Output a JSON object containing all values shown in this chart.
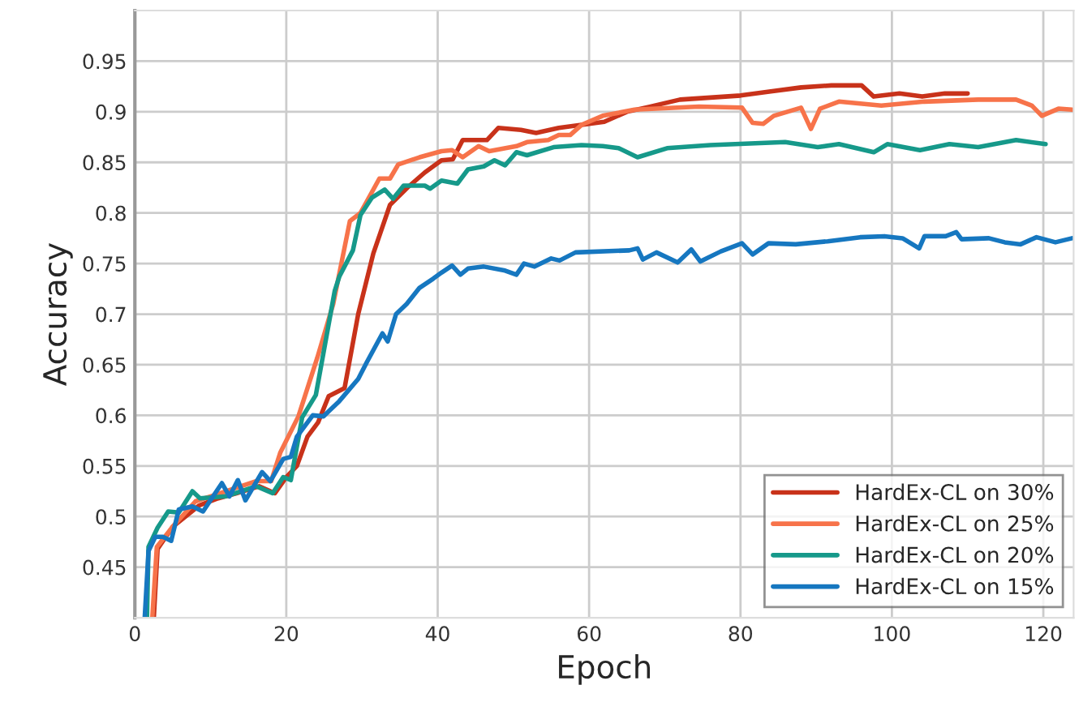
{
  "chart_data": {
    "type": "line",
    "xlabel": "Epoch",
    "ylabel": "Accuracy",
    "xlim": [
      0,
      124
    ],
    "ylim": [
      0.4,
      1.0
    ],
    "xticks": [
      0,
      20,
      40,
      60,
      80,
      100,
      120
    ],
    "yticks": [
      0.45,
      0.5,
      0.55,
      0.6,
      0.65,
      0.7,
      0.75,
      0.8,
      0.85,
      0.9,
      0.95
    ],
    "grid": true,
    "legend": "lower right",
    "line_style": "solid",
    "marker": "none",
    "series": [
      {
        "name": "HardEx-CL on 30%",
        "color": "#c8321a",
        "x": [
          2.5,
          3,
          5,
          8.5,
          11,
          13.4,
          16.4,
          18.5,
          20,
          21.4,
          22.8,
          24.2,
          25.6,
          27.7,
          29.5,
          31.5,
          33.7,
          36,
          38.3,
          40.5,
          42,
          43.3,
          46.5,
          48,
          51,
          53,
          56,
          59,
          62,
          65,
          68,
          72,
          76,
          80,
          84,
          88,
          92,
          96,
          97.6,
          101,
          104,
          107,
          110
        ],
        "values": [
          0.4,
          0.468,
          0.49,
          0.511,
          0.518,
          0.523,
          0.53,
          0.523,
          0.539,
          0.55,
          0.579,
          0.593,
          0.619,
          0.627,
          0.7,
          0.76,
          0.808,
          0.825,
          0.84,
          0.852,
          0.853,
          0.872,
          0.872,
          0.884,
          0.882,
          0.879,
          0.884,
          0.887,
          0.89,
          0.9,
          0.905,
          0.912,
          0.914,
          0.916,
          0.92,
          0.924,
          0.926,
          0.926,
          0.915,
          0.918,
          0.915,
          0.918,
          0.918
        ]
      },
      {
        "name": "HardEx-CL on 25%",
        "color": "#f7734a",
        "x": [
          2.3,
          2.9,
          5,
          8,
          10,
          14,
          16,
          18,
          19.2,
          21.6,
          24.1,
          26.2,
          28.4,
          29.8,
          32.3,
          33.7,
          34.8,
          37.6,
          40.5,
          41.9,
          43.3,
          45.4,
          46.8,
          50.4,
          51.8,
          54.6,
          56,
          57.5,
          59,
          61.8,
          66,
          74.5,
          80.2,
          81.6,
          83,
          84.4,
          88,
          89.3,
          90.5,
          93,
          98.6,
          104.3,
          111.4,
          116.4,
          118.5,
          119.8,
          122,
          123.8
        ],
        "values": [
          0.4,
          0.47,
          0.49,
          0.515,
          0.52,
          0.53,
          0.535,
          0.535,
          0.563,
          0.599,
          0.657,
          0.71,
          0.792,
          0.8,
          0.834,
          0.834,
          0.848,
          0.855,
          0.861,
          0.862,
          0.855,
          0.866,
          0.861,
          0.866,
          0.87,
          0.872,
          0.877,
          0.877,
          0.887,
          0.896,
          0.902,
          0.905,
          0.904,
          0.889,
          0.888,
          0.896,
          0.904,
          0.883,
          0.903,
          0.91,
          0.906,
          0.91,
          0.912,
          0.912,
          0.906,
          0.896,
          0.903,
          0.902
        ]
      },
      {
        "name": "HardEx-CL on 20%",
        "color": "#16998a",
        "x": [
          1.6,
          1.8,
          3,
          4.4,
          5.8,
          7.6,
          8.6,
          12,
          16,
          18.2,
          19.6,
          20.6,
          22.1,
          23.9,
          26.4,
          27,
          28.8,
          29.8,
          31.3,
          33,
          34.1,
          35.5,
          38.3,
          39,
          40.5,
          42.6,
          44,
          46.1,
          47.5,
          48.9,
          50.4,
          51.8,
          55.3,
          59,
          61.8,
          63.9,
          66.4,
          70.3,
          76,
          85.9,
          90.2,
          93,
          97.6,
          99.4,
          103.7,
          107.6,
          111.4,
          116.4,
          120.3
        ],
        "values": [
          0.4,
          0.47,
          0.489,
          0.505,
          0.504,
          0.525,
          0.518,
          0.52,
          0.53,
          0.523,
          0.539,
          0.536,
          0.598,
          0.62,
          0.723,
          0.737,
          0.763,
          0.798,
          0.815,
          0.823,
          0.814,
          0.827,
          0.827,
          0.824,
          0.832,
          0.829,
          0.843,
          0.846,
          0.852,
          0.847,
          0.86,
          0.857,
          0.865,
          0.867,
          0.866,
          0.864,
          0.855,
          0.864,
          0.867,
          0.87,
          0.865,
          0.868,
          0.86,
          0.868,
          0.862,
          0.868,
          0.865,
          0.872,
          0.868
        ]
      },
      {
        "name": "HardEx-CL on 15%",
        "color": "#1677c0",
        "x": [
          1.3,
          1.8,
          2.7,
          3.7,
          4.8,
          5.8,
          7.6,
          9,
          11.5,
          12.5,
          13.6,
          14.6,
          16.8,
          17.9,
          19.6,
          20.6,
          21.4,
          23.5,
          24.9,
          27,
          29.5,
          30.6,
          32.7,
          33.4,
          34.5,
          35.9,
          37.6,
          39.4,
          40.5,
          41.9,
          43,
          44,
          46.1,
          48.9,
          50.4,
          51.4,
          52.8,
          55,
          56.1,
          58.2,
          65.3,
          66.4,
          67.1,
          68.9,
          71.7,
          73.5,
          74.7,
          77.4,
          80.2,
          81.6,
          83.7,
          87.3,
          91.5,
          95.8,
          99,
          101.4,
          103.6,
          104.3,
          107.1,
          108.5,
          109.2,
          112.8,
          114.9,
          117,
          119.1,
          121.6,
          123.8
        ],
        "values": [
          0.4,
          0.466,
          0.48,
          0.48,
          0.476,
          0.507,
          0.51,
          0.505,
          0.533,
          0.52,
          0.536,
          0.516,
          0.544,
          0.535,
          0.557,
          0.559,
          0.579,
          0.6,
          0.599,
          0.614,
          0.636,
          0.652,
          0.681,
          0.673,
          0.7,
          0.71,
          0.726,
          0.735,
          0.741,
          0.748,
          0.739,
          0.745,
          0.747,
          0.743,
          0.739,
          0.75,
          0.747,
          0.755,
          0.753,
          0.761,
          0.763,
          0.765,
          0.754,
          0.761,
          0.751,
          0.764,
          0.752,
          0.762,
          0.77,
          0.759,
          0.77,
          0.769,
          0.772,
          0.776,
          0.777,
          0.775,
          0.765,
          0.777,
          0.777,
          0.781,
          0.774,
          0.775,
          0.771,
          0.769,
          0.776,
          0.771,
          0.775
        ]
      }
    ]
  }
}
